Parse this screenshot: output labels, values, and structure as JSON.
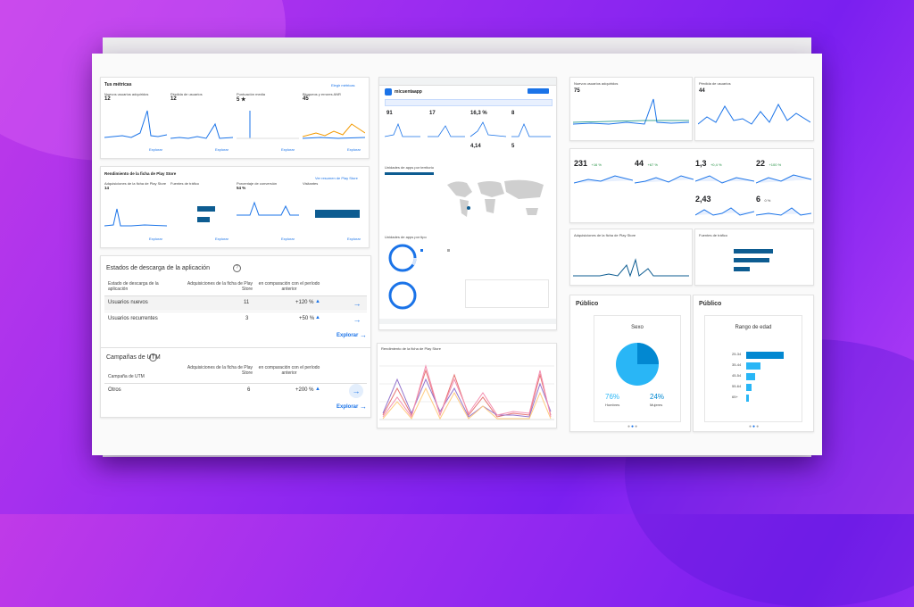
{
  "background": {
    "gradient": [
      "#c03ae8",
      "#7a1ff0"
    ]
  },
  "metrics": {
    "title": "Tus métricas",
    "link": "Elegir métricas",
    "items": [
      {
        "label": "Nuevos usuarios adquiridos",
        "value": "12"
      },
      {
        "label": "Pérdida de usuarios",
        "value": "12"
      },
      {
        "label": "Puntuación media",
        "value": "5 ★"
      },
      {
        "label": "Bloqueos y errores ANR",
        "value": "45"
      }
    ],
    "explore": [
      "Explorar",
      "Explorar",
      "Explorar",
      "Explorar"
    ]
  },
  "store_listing": {
    "title": "Rendimiento de la ficha de Play Store",
    "link": "Ver resumen de Play Store",
    "items": [
      {
        "label": "Adquisiciones de la ficha de Play Store",
        "value": "14"
      },
      {
        "label": "Fuentes de tráfico",
        "value": ""
      },
      {
        "label": "Porcentaje de conversión",
        "value": "54 %"
      },
      {
        "label": "Visitantes",
        "value": ""
      }
    ],
    "explore": [
      "Explorar",
      "Explorar",
      "Explorar",
      "Explorar"
    ]
  },
  "download_states": {
    "title": "Estados de descarga de la aplicación",
    "headers": [
      "Estado de descarga de la aplicación",
      "Adquisiciones de la ficha de Play Store",
      "en comparación con el período anterior"
    ],
    "rows": [
      {
        "label": "Usuarios nuevos",
        "value": "11",
        "change": "+120 %"
      },
      {
        "label": "Usuarios recurrentes",
        "value": "3",
        "change": "+50 %"
      }
    ],
    "explore": "Explorar"
  },
  "utm": {
    "title": "Campañas de UTM",
    "headers": [
      "Campaña de UTM",
      "Adquisiciones de la ficha de Play Store",
      "en comparación con el período anterior"
    ],
    "rows": [
      {
        "label": "Otros",
        "value": "6",
        "change": "+200 %"
      }
    ],
    "explore": "Explorar"
  },
  "center": {
    "app_name": "micuentaapp",
    "values": [
      "91",
      "17",
      "16,3 %",
      "8",
      "4,14",
      "5"
    ],
    "map_title": "Unidades de apps por territorio",
    "devices_title": "Unidades de apps por tipo",
    "bottom_title": "Rendimiento de la ficha de Play Store"
  },
  "right": {
    "new_users": {
      "title": "Nuevos usuarios adquiridos",
      "value": "75"
    },
    "lost_users": {
      "title": "Pérdida de usuarios",
      "value": "44"
    },
    "kpis": [
      {
        "value": "231",
        "delta": "+16 %"
      },
      {
        "value": "44",
        "delta": "+67 %"
      },
      {
        "value": "1,3",
        "delta": "+0,4 %"
      },
      {
        "value": "22",
        "delta": "+100 %"
      },
      {
        "value": "2,43",
        "delta": ""
      },
      {
        "value": "6",
        "delta": "0 %"
      }
    ],
    "traffic_sources": {
      "title": "Fuentes de tráfico",
      "acq_title": "Adquisiciones de la ficha de Play Store"
    },
    "gender": {
      "card_title": "Público",
      "chart_title": "Sexo",
      "men_pct": "76%",
      "men_label": "Hombres",
      "women_pct": "24%",
      "women_label": "Mujeres"
    },
    "age": {
      "card_title": "Público",
      "chart_title": "Rango de edad",
      "ranges": [
        "25-34",
        "35-44",
        "45-54",
        "55-64",
        "65+"
      ]
    }
  }
}
